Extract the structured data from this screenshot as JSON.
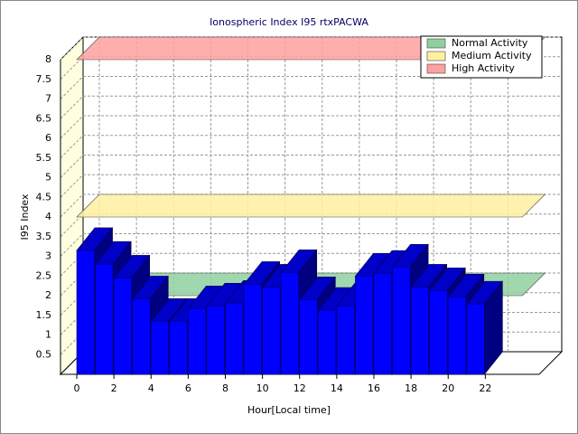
{
  "chart_data": {
    "type": "bar3d",
    "title": "Ionospheric Index I95 rtxPACWA",
    "x_label": "Hour[Local time]",
    "y_label": "I95 Index",
    "x": [
      0,
      1,
      2,
      3,
      4,
      5,
      6,
      7,
      8,
      9,
      10,
      11,
      12,
      13,
      14,
      15,
      16,
      17,
      18,
      19,
      20,
      21
    ],
    "values": [
      3.15,
      2.8,
      2.45,
      1.92,
      1.35,
      1.35,
      1.67,
      1.74,
      1.81,
      2.29,
      2.22,
      2.59,
      1.9,
      1.63,
      1.74,
      2.5,
      2.57,
      2.73,
      2.22,
      2.13,
      1.97,
      1.79
    ],
    "color": "#0000ff",
    "xlim": [
      -0.875,
      24.9
    ],
    "xticks": [
      0,
      2,
      4,
      6,
      8,
      10,
      12,
      14,
      16,
      18,
      20,
      22
    ],
    "ylim": [
      0,
      8
    ],
    "yticks": [
      0.5,
      1,
      1.5,
      2,
      2.5,
      3,
      3.5,
      4,
      4.5,
      5,
      5.5,
      6,
      6.5,
      7,
      7.5,
      8
    ],
    "grid": true,
    "legend": "upper right",
    "bands": [
      {
        "name": "Normal Activity",
        "color": "#90d0a0",
        "value": 2
      },
      {
        "name": "Medium Activity",
        "color": "#fff0a0",
        "value": 4
      },
      {
        "name": "High Activity",
        "color": "#ffa0a0",
        "value": 8
      }
    ]
  }
}
